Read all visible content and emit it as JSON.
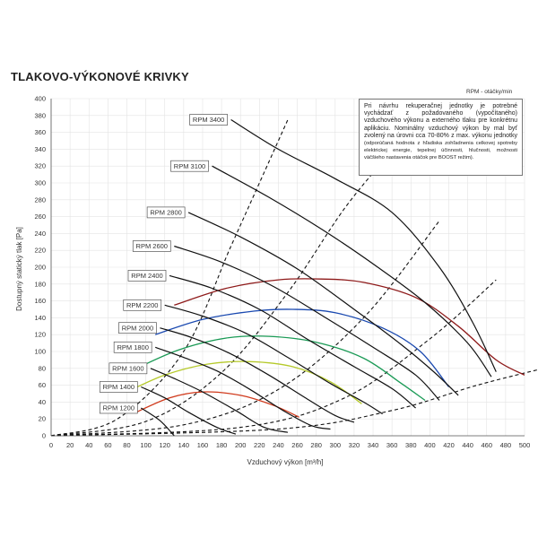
{
  "title": "TLAKOVO-VÝKONOVÉ KRIVKY",
  "note": {
    "unit_label": "RPM - otáčky/min",
    "main_text": "Pri návrhu rekuperačnej jednotky je potrebné vychádzať z požadovaného (vypočítaného) vzduchového výkonu a externého tlaku pre konkrétnu aplikáciu. Nominálny vzduchový výkon by mal byť zvolený na úrovni cca 70-80% z max. výkonu jednotky",
    "small_text": "(odporúčaná hodnota z hľadiska zohľadnenia celkovej spotreby elektrickej energie, tepelnej účinnosti, hlučnosti, možnosti väčšieho nastavenia otáčok pre BOOST režim)."
  },
  "chart_data": {
    "type": "line",
    "title": "TLAKOVO-VÝKONOVÉ KRIVKY",
    "xlabel": "Vzduchový výkon [m³/h]",
    "ylabel": "Dostupný statický tlak [Pa]",
    "xlim": [
      0,
      500
    ],
    "ylim": [
      0,
      400
    ],
    "x_ticks": [
      0,
      20,
      40,
      60,
      80,
      100,
      120,
      140,
      160,
      180,
      200,
      220,
      240,
      260,
      280,
      300,
      320,
      340,
      360,
      380,
      400,
      420,
      440,
      460,
      480,
      500
    ],
    "y_ticks": [
      0,
      20,
      40,
      60,
      80,
      100,
      120,
      140,
      160,
      180,
      200,
      220,
      240,
      260,
      280,
      300,
      320,
      340,
      360,
      380,
      400
    ],
    "grid": true,
    "rpm_curves": [
      {
        "name": "RPM 1200",
        "label_text": "RPM 1200",
        "points": [
          [
            95,
            33
          ],
          [
            115,
            18
          ],
          [
            130,
            0
          ]
        ]
      },
      {
        "name": "RPM 1400",
        "label_text": "RPM 1400",
        "points": [
          [
            95,
            58
          ],
          [
            120,
            45
          ],
          [
            145,
            28
          ],
          [
            175,
            10
          ],
          [
            195,
            2
          ]
        ]
      },
      {
        "name": "RPM 1600",
        "label_text": "RPM 1600",
        "points": [
          [
            105,
            80
          ],
          [
            130,
            68
          ],
          [
            160,
            52
          ],
          [
            195,
            30
          ],
          [
            225,
            10
          ],
          [
            250,
            4
          ]
        ]
      },
      {
        "name": "RPM 1800",
        "label_text": "RPM 1800",
        "points": [
          [
            110,
            105
          ],
          [
            140,
            93
          ],
          [
            175,
            77
          ],
          [
            210,
            55
          ],
          [
            245,
            30
          ],
          [
            275,
            12
          ],
          [
            295,
            8
          ]
        ]
      },
      {
        "name": "RPM 2000",
        "label_text": "RPM 2000",
        "points": [
          [
            115,
            128
          ],
          [
            150,
            116
          ],
          [
            190,
            97
          ],
          [
            230,
            72
          ],
          [
            270,
            44
          ],
          [
            300,
            24
          ],
          [
            320,
            16
          ]
        ]
      },
      {
        "name": "RPM 2200",
        "label_text": "RPM 2200",
        "points": [
          [
            120,
            155
          ],
          [
            160,
            142
          ],
          [
            205,
            122
          ],
          [
            250,
            93
          ],
          [
            295,
            62
          ],
          [
            330,
            40
          ],
          [
            350,
            26
          ]
        ]
      },
      {
        "name": "RPM 2400",
        "label_text": "RPM 2400",
        "points": [
          [
            125,
            190
          ],
          [
            170,
            175
          ],
          [
            220,
            150
          ],
          [
            270,
            115
          ],
          [
            320,
            82
          ],
          [
            360,
            56
          ],
          [
            385,
            33
          ]
        ]
      },
      {
        "name": "RPM 2600",
        "label_text": "RPM 2600",
        "points": [
          [
            130,
            225
          ],
          [
            180,
            206
          ],
          [
            235,
            177
          ],
          [
            290,
            140
          ],
          [
            340,
            105
          ],
          [
            385,
            72
          ],
          [
            410,
            42
          ]
        ]
      },
      {
        "name": "RPM 2800",
        "label_text": "RPM 2800",
        "points": [
          [
            145,
            265
          ],
          [
            200,
            236
          ],
          [
            260,
            198
          ],
          [
            320,
            150
          ],
          [
            370,
            108
          ],
          [
            405,
            75
          ],
          [
            430,
            48
          ]
        ]
      },
      {
        "name": "RPM 3100",
        "label_text": "RPM 3100",
        "points": [
          [
            170,
            320
          ],
          [
            230,
            283
          ],
          [
            290,
            242
          ],
          [
            345,
            200
          ],
          [
            395,
            158
          ],
          [
            440,
            110
          ],
          [
            465,
            70
          ]
        ]
      },
      {
        "name": "RPM 3400",
        "label_text": "RPM 3400",
        "points": [
          [
            190,
            375
          ],
          [
            240,
            340
          ],
          [
            300,
            305
          ],
          [
            360,
            265
          ],
          [
            410,
            200
          ],
          [
            445,
            135
          ],
          [
            470,
            76
          ]
        ]
      }
    ],
    "efficiency_curves": [
      {
        "color": "#d03a1c",
        "points": [
          [
            90,
            28
          ],
          [
            125,
            45
          ],
          [
            160,
            52
          ],
          [
            200,
            48
          ],
          [
            235,
            36
          ],
          [
            262,
            22
          ]
        ]
      },
      {
        "color": "#b5c92a",
        "points": [
          [
            80,
            52
          ],
          [
            120,
            72
          ],
          [
            165,
            85
          ],
          [
            210,
            88
          ],
          [
            255,
            82
          ],
          [
            295,
            64
          ],
          [
            328,
            38
          ]
        ]
      },
      {
        "color": "#1a9a55",
        "points": [
          [
            90,
            80
          ],
          [
            135,
            102
          ],
          [
            185,
            116
          ],
          [
            230,
            118
          ],
          [
            280,
            111
          ],
          [
            330,
            92
          ],
          [
            370,
            62
          ],
          [
            395,
            42
          ]
        ]
      },
      {
        "color": "#1a49b0",
        "points": [
          [
            110,
            120
          ],
          [
            160,
            138
          ],
          [
            215,
            148
          ],
          [
            255,
            150
          ],
          [
            300,
            146
          ],
          [
            350,
            128
          ],
          [
            390,
            100
          ],
          [
            420,
            58
          ]
        ]
      },
      {
        "color": "#8e1a1a",
        "points": [
          [
            130,
            155
          ],
          [
            185,
            175
          ],
          [
            240,
            185
          ],
          [
            285,
            186
          ],
          [
            330,
            182
          ],
          [
            385,
            164
          ],
          [
            430,
            130
          ],
          [
            470,
            90
          ],
          [
            500,
            72
          ]
        ]
      }
    ],
    "system_curves": [
      {
        "points": [
          [
            0,
            0
          ],
          [
            70,
            20
          ],
          [
            140,
            100
          ],
          [
            190,
            225
          ],
          [
            230,
            325
          ],
          [
            250,
            375
          ]
        ]
      },
      {
        "points": [
          [
            0,
            0
          ],
          [
            100,
            17
          ],
          [
            180,
            75
          ],
          [
            250,
            170
          ],
          [
            310,
            270
          ],
          [
            360,
            338
          ]
        ]
      },
      {
        "points": [
          [
            0,
            0
          ],
          [
            140,
            13
          ],
          [
            240,
            55
          ],
          [
            330,
            140
          ],
          [
            410,
            255
          ]
        ]
      },
      {
        "points": [
          [
            0,
            0
          ],
          [
            200,
            10
          ],
          [
            310,
            45
          ],
          [
            400,
            115
          ],
          [
            470,
            185
          ]
        ]
      },
      {
        "points": [
          [
            0,
            0
          ],
          [
            240,
            8
          ],
          [
            360,
            30
          ],
          [
            450,
            60
          ],
          [
            520,
            80
          ]
        ]
      }
    ]
  }
}
